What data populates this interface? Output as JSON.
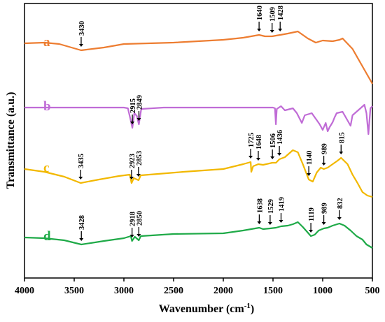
{
  "chart_data": {
    "type": "line",
    "title": "",
    "xlabel": "Wavenumber (cm",
    "xlabel_sup": "-1",
    "xlabel_close": ")",
    "ylabel": "Transmittance (a.u.)",
    "xlim": [
      4000,
      500
    ],
    "x_reversed": true,
    "y_scale": "arbitrary units (no ticks)",
    "grid": false,
    "legend": "letters at left of each trace",
    "xticks": [
      "4000",
      "3500",
      "3000",
      "2500",
      "2000",
      "1500",
      "1000",
      "500"
    ],
    "series": [
      {
        "name": "a",
        "color": "#ed7d31",
        "points": [
          [
            4000,
            62
          ],
          [
            3800,
            61
          ],
          [
            3650,
            63
          ],
          [
            3430,
            72
          ],
          [
            3200,
            68
          ],
          [
            3000,
            63
          ],
          [
            2500,
            61
          ],
          [
            2000,
            57
          ],
          [
            1800,
            54
          ],
          [
            1640,
            50
          ],
          [
            1580,
            52
          ],
          [
            1509,
            52
          ],
          [
            1470,
            51
          ],
          [
            1428,
            50
          ],
          [
            1350,
            48
          ],
          [
            1250,
            45
          ],
          [
            1150,
            55
          ],
          [
            1070,
            61
          ],
          [
            1000,
            58
          ],
          [
            900,
            59
          ],
          [
            830,
            57
          ],
          [
            800,
            55
          ],
          [
            700,
            70
          ],
          [
            600,
            95
          ],
          [
            520,
            115
          ],
          [
            500,
            120
          ]
        ],
        "peaks": [
          {
            "x": 3430,
            "label": "3430"
          },
          {
            "x": 1640,
            "label": "1640"
          },
          {
            "x": 1509,
            "label": "1509"
          },
          {
            "x": 1428,
            "label": "1428"
          }
        ]
      },
      {
        "name": "b",
        "color": "#c06cd6",
        "points": [
          [
            4000,
            154
          ],
          [
            3500,
            154
          ],
          [
            3000,
            154
          ],
          [
            2960,
            155
          ],
          [
            2935,
            170
          ],
          [
            2915,
            183
          ],
          [
            2895,
            162
          ],
          [
            2870,
            166
          ],
          [
            2849,
            178
          ],
          [
            2825,
            156
          ],
          [
            2600,
            154
          ],
          [
            2000,
            154
          ],
          [
            1500,
            154
          ],
          [
            1480,
            155
          ],
          [
            1471,
            178
          ],
          [
            1462,
            156
          ],
          [
            1420,
            152
          ],
          [
            1380,
            158
          ],
          [
            1300,
            155
          ],
          [
            1260,
            162
          ],
          [
            1210,
            176
          ],
          [
            1180,
            165
          ],
          [
            1110,
            162
          ],
          [
            1060,
            172
          ],
          [
            1030,
            178
          ],
          [
            1000,
            186
          ],
          [
            970,
            176
          ],
          [
            950,
            188
          ],
          [
            930,
            182
          ],
          [
            900,
            175
          ],
          [
            880,
            168
          ],
          [
            860,
            162
          ],
          [
            800,
            160
          ],
          [
            720,
            180
          ],
          [
            700,
            165
          ],
          [
            620,
            155
          ],
          [
            580,
            150
          ],
          [
            560,
            162
          ],
          [
            540,
            192
          ],
          [
            520,
            155
          ],
          [
            500,
            152
          ]
        ],
        "peaks": [
          {
            "x": 2915,
            "label": "2915"
          },
          {
            "x": 2849,
            "label": "2849"
          }
        ]
      },
      {
        "name": "c",
        "color": "#f2b800",
        "points": [
          [
            4000,
            242
          ],
          [
            3800,
            246
          ],
          [
            3600,
            253
          ],
          [
            3435,
            262
          ],
          [
            3250,
            257
          ],
          [
            3050,
            252
          ],
          [
            2940,
            250
          ],
          [
            2923,
            262
          ],
          [
            2900,
            255
          ],
          [
            2853,
            258
          ],
          [
            2830,
            251
          ],
          [
            2400,
            246
          ],
          [
            2000,
            242
          ],
          [
            1800,
            235
          ],
          [
            1725,
            232
          ],
          [
            1718,
            246
          ],
          [
            1700,
            238
          ],
          [
            1648,
            235
          ],
          [
            1600,
            236
          ],
          [
            1506,
            233
          ],
          [
            1470,
            233
          ],
          [
            1436,
            228
          ],
          [
            1380,
            225
          ],
          [
            1300,
            215
          ],
          [
            1250,
            218
          ],
          [
            1200,
            235
          ],
          [
            1140,
            257
          ],
          [
            1100,
            260
          ],
          [
            1060,
            247
          ],
          [
            1020,
            240
          ],
          [
            989,
            242
          ],
          [
            950,
            240
          ],
          [
            900,
            235
          ],
          [
            850,
            230
          ],
          [
            815,
            226
          ],
          [
            750,
            235
          ],
          [
            700,
            250
          ],
          [
            650,
            262
          ],
          [
            600,
            275
          ],
          [
            550,
            280
          ],
          [
            500,
            282
          ]
        ],
        "peaks": [
          {
            "x": 3435,
            "label": "3435"
          },
          {
            "x": 2923,
            "label": "2923"
          },
          {
            "x": 2853,
            "label": "2853"
          },
          {
            "x": 1725,
            "label": "1725"
          },
          {
            "x": 1648,
            "label": "1648"
          },
          {
            "x": 1506,
            "label": "1506"
          },
          {
            "x": 1436,
            "label": "1436"
          },
          {
            "x": 1140,
            "label": "1140"
          },
          {
            "x": 989,
            "label": "989"
          },
          {
            "x": 815,
            "label": "815"
          }
        ]
      },
      {
        "name": "d",
        "color": "#1faa48",
        "points": [
          [
            4000,
            340
          ],
          [
            3800,
            341
          ],
          [
            3600,
            344
          ],
          [
            3428,
            350
          ],
          [
            3200,
            345
          ],
          [
            3000,
            341
          ],
          [
            2930,
            338
          ],
          [
            2918,
            345
          ],
          [
            2890,
            339
          ],
          [
            2850,
            344
          ],
          [
            2830,
            338
          ],
          [
            2500,
            335
          ],
          [
            2000,
            334
          ],
          [
            1800,
            330
          ],
          [
            1638,
            326
          ],
          [
            1600,
            328
          ],
          [
            1529,
            327
          ],
          [
            1470,
            326
          ],
          [
            1419,
            324
          ],
          [
            1350,
            323
          ],
          [
            1300,
            321
          ],
          [
            1250,
            318
          ],
          [
            1200,
            325
          ],
          [
            1119,
            338
          ],
          [
            1080,
            336
          ],
          [
            1040,
            330
          ],
          [
            989,
            327
          ],
          [
            950,
            326
          ],
          [
            900,
            323
          ],
          [
            832,
            320
          ],
          [
            780,
            323
          ],
          [
            720,
            330
          ],
          [
            660,
            338
          ],
          [
            600,
            343
          ],
          [
            560,
            350
          ],
          [
            500,
            355
          ]
        ],
        "peaks": [
          {
            "x": 3428,
            "label": "3428"
          },
          {
            "x": 2918,
            "label": "2918"
          },
          {
            "x": 2850,
            "label": "2850"
          },
          {
            "x": 1638,
            "label": "1638"
          },
          {
            "x": 1529,
            "label": "1529"
          },
          {
            "x": 1419,
            "label": "1419"
          },
          {
            "x": 1119,
            "label": "1119"
          },
          {
            "x": 989,
            "label": "989"
          },
          {
            "x": 832,
            "label": "832"
          }
        ]
      }
    ]
  }
}
